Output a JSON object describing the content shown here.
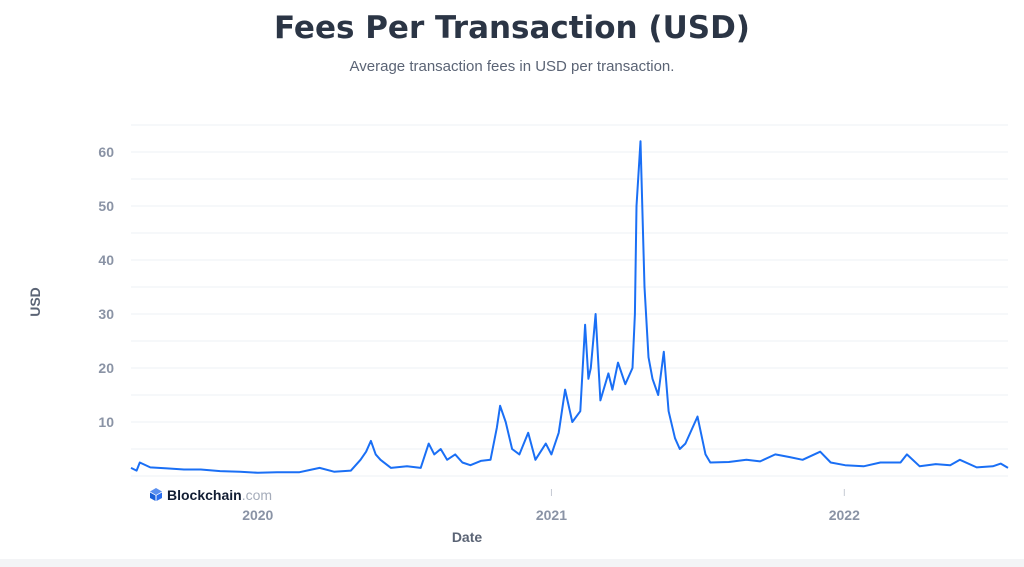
{
  "chart_data": {
    "type": "line",
    "title": "Fees Per Transaction (USD)",
    "subtitle": "Average transaction fees in USD per transaction.",
    "xlabel": "Date",
    "ylabel": "USD",
    "ylim": [
      0,
      65
    ],
    "xlim": [
      "2019-07-27",
      "2022-07-24"
    ],
    "yticks": [
      10,
      20,
      30,
      40,
      50,
      60
    ],
    "xticks": [
      {
        "label": "2020",
        "date": "2020-01-01"
      },
      {
        "label": "2021",
        "date": "2021-01-01"
      },
      {
        "label": "2022",
        "date": "2022-01-01"
      }
    ],
    "grid": true,
    "line_color": "#1a6ff5",
    "series": [
      {
        "points": [
          [
            "2019-07-27",
            1.5
          ],
          [
            "2019-08-03",
            1.0
          ],
          [
            "2019-08-07",
            2.5
          ],
          [
            "2019-08-20",
            1.6
          ],
          [
            "2019-09-10",
            1.4
          ],
          [
            "2019-10-01",
            1.2
          ],
          [
            "2019-10-22",
            1.2
          ],
          [
            "2019-11-15",
            0.9
          ],
          [
            "2019-12-10",
            0.8
          ],
          [
            "2020-01-01",
            0.6
          ],
          [
            "2020-01-25",
            0.7
          ],
          [
            "2020-02-22",
            0.7
          ],
          [
            "2020-03-05",
            1.1
          ],
          [
            "2020-03-18",
            1.5
          ],
          [
            "2020-04-05",
            0.8
          ],
          [
            "2020-04-26",
            1.0
          ],
          [
            "2020-05-08",
            3.0
          ],
          [
            "2020-05-15",
            4.5
          ],
          [
            "2020-05-21",
            6.5
          ],
          [
            "2020-05-27",
            4.0
          ],
          [
            "2020-06-02",
            3.0
          ],
          [
            "2020-06-15",
            1.5
          ],
          [
            "2020-07-05",
            1.8
          ],
          [
            "2020-07-22",
            1.5
          ],
          [
            "2020-08-01",
            6.0
          ],
          [
            "2020-08-08",
            4.0
          ],
          [
            "2020-08-16",
            5.0
          ],
          [
            "2020-08-24",
            3.0
          ],
          [
            "2020-09-03",
            4.0
          ],
          [
            "2020-09-12",
            2.5
          ],
          [
            "2020-09-22",
            2.0
          ],
          [
            "2020-10-05",
            2.8
          ],
          [
            "2020-10-17",
            3.0
          ],
          [
            "2020-10-25",
            9.0
          ],
          [
            "2020-10-29",
            13.0
          ],
          [
            "2020-11-05",
            10.0
          ],
          [
            "2020-11-13",
            5.0
          ],
          [
            "2020-11-22",
            4.0
          ],
          [
            "2020-12-03",
            8.0
          ],
          [
            "2020-12-12",
            3.0
          ],
          [
            "2020-12-25",
            6.0
          ],
          [
            "2021-01-01",
            4.0
          ],
          [
            "2021-01-10",
            8.0
          ],
          [
            "2021-01-14",
            12.0
          ],
          [
            "2021-01-18",
            16.0
          ],
          [
            "2021-01-27",
            10.0
          ],
          [
            "2021-02-06",
            12.0
          ],
          [
            "2021-02-12",
            28.0
          ],
          [
            "2021-02-16",
            18.0
          ],
          [
            "2021-02-19",
            20.0
          ],
          [
            "2021-02-25",
            30.0
          ],
          [
            "2021-03-03",
            14.0
          ],
          [
            "2021-03-13",
            19.0
          ],
          [
            "2021-03-18",
            16.0
          ],
          [
            "2021-03-25",
            21.0
          ],
          [
            "2021-04-03",
            17.0
          ],
          [
            "2021-04-12",
            20.0
          ],
          [
            "2021-04-15",
            30.0
          ],
          [
            "2021-04-17",
            50.0
          ],
          [
            "2021-04-22",
            62.0
          ],
          [
            "2021-04-27",
            35.0
          ],
          [
            "2021-05-02",
            22.0
          ],
          [
            "2021-05-07",
            18.0
          ],
          [
            "2021-05-14",
            15.0
          ],
          [
            "2021-05-21",
            23.0
          ],
          [
            "2021-05-27",
            12.0
          ],
          [
            "2021-06-04",
            7.0
          ],
          [
            "2021-06-10",
            5.0
          ],
          [
            "2021-06-17",
            6.0
          ],
          [
            "2021-07-02",
            11.0
          ],
          [
            "2021-07-12",
            4.0
          ],
          [
            "2021-07-18",
            2.5
          ],
          [
            "2021-08-10",
            2.6
          ],
          [
            "2021-09-01",
            3.0
          ],
          [
            "2021-09-18",
            2.7
          ],
          [
            "2021-10-07",
            4.0
          ],
          [
            "2021-10-25",
            3.5
          ],
          [
            "2021-11-10",
            3.0
          ],
          [
            "2021-12-02",
            4.5
          ],
          [
            "2021-12-15",
            2.5
          ],
          [
            "2022-01-02",
            2.0
          ],
          [
            "2022-01-25",
            1.8
          ],
          [
            "2022-02-15",
            2.5
          ],
          [
            "2022-03-12",
            2.5
          ],
          [
            "2022-03-20",
            4.0
          ],
          [
            "2022-04-05",
            1.8
          ],
          [
            "2022-04-25",
            2.2
          ],
          [
            "2022-05-13",
            2.0
          ],
          [
            "2022-05-25",
            3.0
          ],
          [
            "2022-06-15",
            1.6
          ],
          [
            "2022-07-05",
            1.8
          ],
          [
            "2022-07-15",
            2.3
          ],
          [
            "2022-07-24",
            1.5
          ]
        ]
      }
    ],
    "watermark": "Blockchain.com"
  }
}
